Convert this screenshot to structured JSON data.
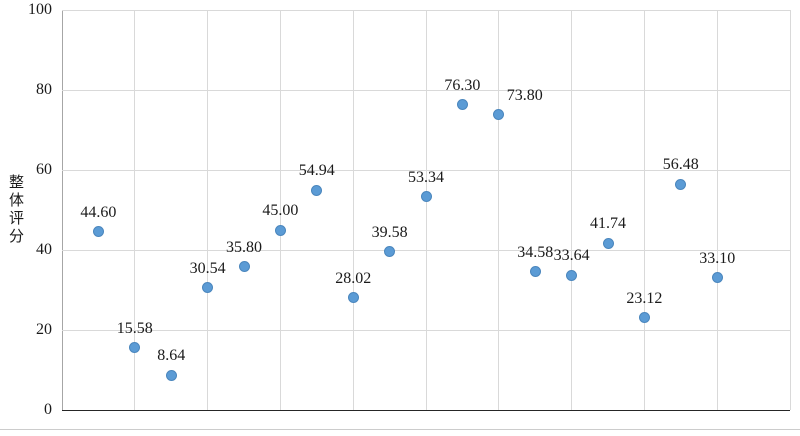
{
  "chart_data": {
    "type": "scatter",
    "title": "",
    "xlabel": "",
    "ylabel": "整体评分",
    "ylim": [
      0,
      100
    ],
    "xlim": [
      0,
      20
    ],
    "yticks": [
      0,
      20,
      40,
      60,
      80,
      100
    ],
    "x_gridline_step": 2,
    "grid": true,
    "legend": "none",
    "point_color": "#5b9bd5",
    "point_edge_color": "#4a86bd",
    "points": [
      {
        "x": 1,
        "y": 44.6,
        "label": "44.60"
      },
      {
        "x": 2,
        "y": 15.58,
        "label": "15.58"
      },
      {
        "x": 3,
        "y": 8.64,
        "label": "8.64"
      },
      {
        "x": 4,
        "y": 30.54,
        "label": "30.54"
      },
      {
        "x": 5,
        "y": 35.8,
        "label": "35.80"
      },
      {
        "x": 6,
        "y": 45.0,
        "label": "45.00"
      },
      {
        "x": 7,
        "y": 54.94,
        "label": "54.94"
      },
      {
        "x": 8,
        "y": 28.02,
        "label": "28.02"
      },
      {
        "x": 9,
        "y": 39.58,
        "label": "39.58"
      },
      {
        "x": 10,
        "y": 53.34,
        "label": "53.34"
      },
      {
        "x": 11,
        "y": 76.3,
        "label": "76.30"
      },
      {
        "x": 12,
        "y": 73.8,
        "label": "73.80",
        "label_dx": 26
      },
      {
        "x": 13,
        "y": 34.58,
        "label": "34.58"
      },
      {
        "x": 14,
        "y": 33.64,
        "label": "33.64"
      },
      {
        "x": 15,
        "y": 41.74,
        "label": "41.74"
      },
      {
        "x": 16,
        "y": 23.12,
        "label": "23.12"
      },
      {
        "x": 17,
        "y": 56.48,
        "label": "56.48"
      },
      {
        "x": 18,
        "y": 33.1,
        "label": "33.10"
      }
    ]
  }
}
